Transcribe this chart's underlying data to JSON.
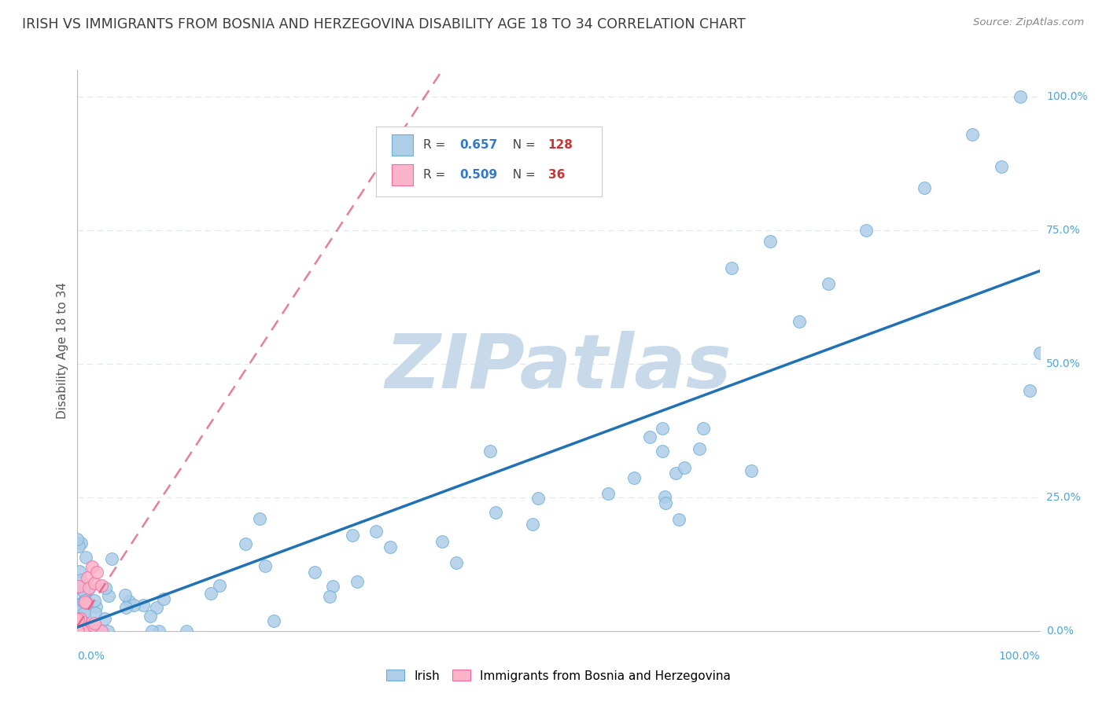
{
  "title": "IRISH VS IMMIGRANTS FROM BOSNIA AND HERZEGOVINA DISABILITY AGE 18 TO 34 CORRELATION CHART",
  "source": "Source: ZipAtlas.com",
  "ylabel": "Disability Age 18 to 34",
  "irish_R": 0.657,
  "irish_N": 128,
  "bosnia_R": 0.509,
  "bosnia_N": 36,
  "irish_color": "#aecde8",
  "irish_edge_color": "#6aaed6",
  "irish_line_color": "#2171b5",
  "bosnia_color": "#fbb4c9",
  "bosnia_edge_color": "#f768a1",
  "bosnia_line_color": "#e0547a",
  "watermark": "ZIPatlas",
  "watermark_color": "#c8daea",
  "title_color": "#3c3c3c",
  "source_color": "#888888",
  "axis_color": "#4da6d9",
  "grid_color": "#dde8f0",
  "legend_r_color": "#3377cc",
  "legend_n_color": "#cc3333",
  "legend_border_color": "#cccccc",
  "spine_color": "#bbbbbb"
}
